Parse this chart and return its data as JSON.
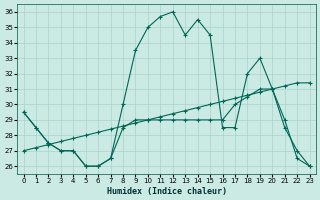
{
  "xlabel": "Humidex (Indice chaleur)",
  "background_color": "#cceae4",
  "grid_color": "#a8d4cc",
  "line_color": "#006655",
  "xlim": [
    -0.5,
    23.5
  ],
  "ylim": [
    25.5,
    36.5
  ],
  "yticks": [
    26,
    27,
    28,
    29,
    30,
    31,
    32,
    33,
    34,
    35,
    36
  ],
  "xticks": [
    0,
    1,
    2,
    3,
    4,
    5,
    6,
    7,
    8,
    9,
    10,
    11,
    12,
    13,
    14,
    15,
    16,
    17,
    18,
    19,
    20,
    21,
    22,
    23
  ],
  "line_main_x": [
    0,
    1,
    2,
    3,
    4,
    5,
    6,
    7,
    8,
    9,
    10,
    11,
    12,
    13,
    14,
    15,
    16,
    17,
    18,
    19,
    20,
    21,
    22,
    23
  ],
  "line_main_y": [
    29.5,
    28.5,
    27.5,
    27.0,
    27.0,
    26.0,
    26.0,
    26.5,
    30.0,
    33.5,
    35.0,
    35.7,
    36.0,
    34.5,
    35.5,
    34.5,
    28.5,
    28.5,
    32.0,
    33.0,
    31.0,
    28.5,
    27.0,
    26.0
  ],
  "line_diag_x": [
    0,
    1,
    2,
    3,
    4,
    5,
    6,
    7,
    8,
    9,
    10,
    11,
    12,
    13,
    14,
    15,
    16,
    17,
    18,
    19,
    20,
    21,
    22,
    23
  ],
  "line_diag_y": [
    27.0,
    27.2,
    27.4,
    27.6,
    27.8,
    28.0,
    28.2,
    28.4,
    28.6,
    28.8,
    29.0,
    29.2,
    29.4,
    29.6,
    29.8,
    30.0,
    30.2,
    30.4,
    30.6,
    30.8,
    31.0,
    31.2,
    31.4,
    31.4
  ],
  "line_low_x": [
    0,
    1,
    2,
    3,
    4,
    5,
    6,
    7,
    8,
    9,
    10,
    11,
    12,
    13,
    14,
    15,
    16,
    17,
    18,
    19,
    20,
    21,
    22,
    23
  ],
  "line_low_y": [
    29.5,
    28.5,
    27.5,
    27.0,
    27.0,
    26.0,
    26.0,
    26.5,
    28.5,
    29.0,
    29.0,
    29.0,
    29.0,
    29.0,
    29.0,
    29.0,
    29.0,
    30.0,
    30.5,
    31.0,
    31.0,
    29.0,
    26.5,
    26.0
  ]
}
